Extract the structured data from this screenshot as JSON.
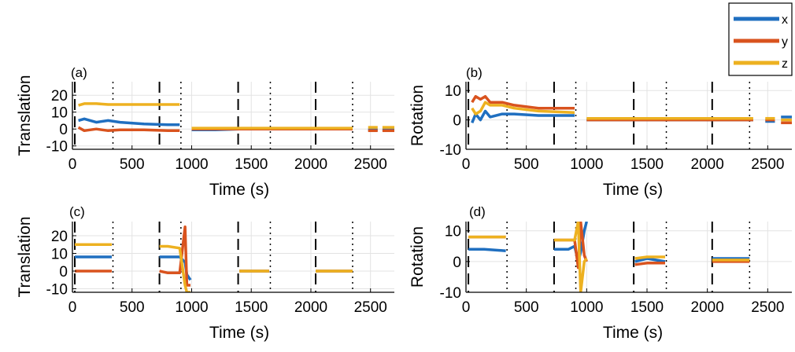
{
  "chart_data": {
    "type": "line",
    "x_ticks": [
      0,
      500,
      1000,
      1500,
      2000,
      2500
    ],
    "xlim": [
      0,
      2700
    ],
    "colors": {
      "x": "#1f6fc0",
      "y": "#d9531e",
      "z": "#edb120"
    },
    "legend": {
      "entries": [
        "x",
        "y",
        "z"
      ],
      "placement": "top-right"
    },
    "panels": [
      {
        "label": "(a)",
        "xlabel": "Time (s)",
        "ylabel": "Translation",
        "ylim": [
          -12,
          28
        ],
        "y_ticks": [
          -10,
          0,
          10,
          20
        ],
        "y_tick_labels": [
          "-10",
          "0",
          "10",
          "20"
        ],
        "dashed_vlines": [
          20,
          730,
          1390,
          2040
        ],
        "dotted_vlines": [
          340,
          910,
          1660,
          2350
        ],
        "segments": [
          {
            "t": [
              50,
              100,
              200,
              300,
              400,
              600,
              800,
              900
            ],
            "x": [
              5,
              6,
              4,
              5,
              4,
              3,
              2.5,
              2.5
            ],
            "y": [
              1,
              -1,
              0,
              -1,
              -0.5,
              -0.5,
              -1,
              -1
            ],
            "z": [
              14,
              15,
              15,
              14.5,
              14.5,
              14.5,
              14.5,
              14.5
            ]
          },
          {
            "t": [
              1000,
              1200,
              1400,
              1600,
              1800,
              2000,
              2200,
              2350
            ],
            "x": [
              -0.5,
              -0.5,
              0,
              0,
              0,
              0,
              0,
              0
            ],
            "y": [
              0,
              0,
              0,
              0,
              0,
              0,
              0,
              0
            ],
            "z": [
              0.5,
              0.5,
              0.5,
              0.5,
              0.5,
              0.5,
              0.5,
              0.5
            ]
          },
          {
            "t": [
              2480,
              2560
            ],
            "x": [
              -0.5,
              -0.5
            ],
            "y": [
              -1,
              -1
            ],
            "z": [
              1,
              1
            ]
          },
          {
            "t": [
              2600,
              2700
            ],
            "x": [
              -0.5,
              -0.5
            ],
            "y": [
              -1,
              -1
            ],
            "z": [
              1,
              1
            ]
          }
        ]
      },
      {
        "label": "(b)",
        "xlabel": "Time (s)",
        "ylabel": "Rotation",
        "ylim": [
          -10,
          13
        ],
        "y_ticks": [
          -10,
          0,
          10
        ],
        "y_tick_labels": [
          "-10",
          "0",
          "10"
        ],
        "dashed_vlines": [
          20,
          730,
          1390,
          2040
        ],
        "dotted_vlines": [
          340,
          910,
          1660,
          2350
        ],
        "segments": [
          {
            "t": [
              50,
              80,
              120,
              160,
              200,
              300,
              400,
              600,
              900
            ],
            "x": [
              -1,
              2,
              0,
              3,
              1,
              2,
              2,
              1.5,
              1.5
            ],
            "y": [
              6,
              8,
              7,
              8,
              6,
              6,
              5,
              4,
              4
            ],
            "z": [
              4,
              2,
              3,
              6,
              5,
              5,
              4,
              3,
              2.5
            ]
          },
          {
            "t": [
              1000,
              1200,
              1400,
              1600,
              1800,
              2000,
              2200,
              2380
            ],
            "x": [
              0,
              0,
              0,
              0,
              0,
              0,
              0,
              0
            ],
            "y": [
              0,
              0,
              0,
              0,
              0,
              0,
              0,
              0
            ],
            "z": [
              0.5,
              0.5,
              0.5,
              0.5,
              0.5,
              0.5,
              0.5,
              0.5
            ]
          },
          {
            "t": [
              2480,
              2560
            ],
            "x": [
              -0.5,
              -0.5
            ],
            "y": [
              0,
              0
            ],
            "z": [
              0.5,
              0.5
            ]
          },
          {
            "t": [
              2610,
              2700
            ],
            "x": [
              1,
              1
            ],
            "y": [
              -1,
              -1
            ],
            "z": [
              0,
              0
            ]
          }
        ]
      },
      {
        "label": "(c)",
        "xlabel": "Time (s)",
        "ylabel": "Translation",
        "ylim": [
          -12,
          28
        ],
        "y_ticks": [
          -10,
          0,
          10,
          20
        ],
        "y_tick_labels": [
          "-10",
          "0",
          "10",
          "20"
        ],
        "dashed_vlines": [
          20,
          730,
          1390,
          2040
        ],
        "dotted_vlines": [
          340,
          910,
          1660,
          2350
        ],
        "segments": [
          {
            "t": [
              20,
              150,
              330
            ],
            "x": [
              8,
              8,
              8
            ],
            "y": [
              0,
              0,
              0
            ],
            "z": [
              15,
              15,
              15
            ]
          },
          {
            "t": [
              730,
              800,
              900,
              945,
              960,
              990
            ],
            "x": [
              8,
              8,
              8,
              5,
              -2,
              -5
            ],
            "y": [
              0,
              -1,
              -1,
              25,
              -8,
              -8
            ],
            "z": [
              14,
              14,
              13,
              -8,
              -12,
              -12
            ]
          },
          {
            "t": [
              1400,
              1500,
              1650
            ],
            "x": [
              0,
              0,
              0
            ],
            "y": [
              0,
              0,
              0
            ],
            "z": [
              0,
              0,
              0
            ]
          },
          {
            "t": [
              2040,
              2200,
              2350
            ],
            "x": [
              0,
              0,
              0
            ],
            "y": [
              0,
              0,
              0
            ],
            "z": [
              0,
              0,
              0
            ]
          }
        ]
      },
      {
        "label": "(d)",
        "xlabel": "Time (s)",
        "ylabel": "Rotation",
        "ylim": [
          -10,
          13
        ],
        "y_ticks": [
          -10,
          0,
          10
        ],
        "y_tick_labels": [
          "-10",
          "0",
          "10"
        ],
        "dashed_vlines": [
          20,
          730,
          1390,
          2040
        ],
        "dotted_vlines": [
          340,
          910,
          1660,
          2350
        ],
        "segments": [
          {
            "t": [
              20,
              150,
              330
            ],
            "x": [
              4,
              4,
              3.5
            ],
            "y": [
              8,
              8,
              8
            ],
            "z": [
              8,
              8,
              8
            ]
          },
          {
            "t": [
              730,
              850,
              900,
              930,
              950,
              980,
              1000
            ],
            "x": [
              4,
              4,
              5,
              0,
              3,
              10,
              13
            ],
            "y": [
              7,
              7,
              7,
              -2,
              13,
              2,
              0
            ],
            "z": [
              7,
              7,
              7,
              13,
              -10,
              0,
              1
            ]
          },
          {
            "t": [
              1400,
              1500,
              1650
            ],
            "x": [
              0,
              1,
              0
            ],
            "y": [
              -1,
              -0.5,
              -0.5
            ],
            "z": [
              1,
              1.5,
              1.5
            ]
          },
          {
            "t": [
              2040,
              2200,
              2350
            ],
            "x": [
              1,
              1,
              1
            ],
            "y": [
              0,
              0,
              0
            ],
            "z": [
              0.5,
              0.5,
              0.5
            ]
          }
        ]
      }
    ]
  }
}
